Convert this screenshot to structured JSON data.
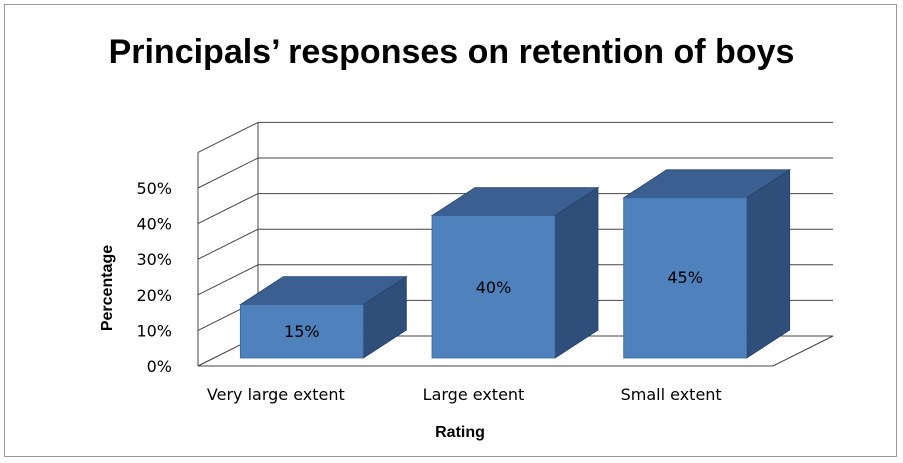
{
  "chart_data": {
    "type": "bar",
    "title": "Principals’ responses on retention of boys",
    "xlabel": "Rating",
    "ylabel": "Percentage",
    "categories": [
      "Very large extent",
      "Large extent",
      "Small extent"
    ],
    "values": [
      15,
      40,
      45
    ],
    "data_labels": [
      "15%",
      "40%",
      "45%"
    ],
    "ylim": [
      0,
      50
    ],
    "yticks": [
      "0%",
      "10%",
      "20%",
      "30%",
      "40%",
      "50%"
    ],
    "grid": true,
    "legend": "none",
    "style": "3d-column",
    "colors": {
      "front": "#4f81bd",
      "side": "#2f4f7a",
      "top": "#3a5f90"
    }
  }
}
